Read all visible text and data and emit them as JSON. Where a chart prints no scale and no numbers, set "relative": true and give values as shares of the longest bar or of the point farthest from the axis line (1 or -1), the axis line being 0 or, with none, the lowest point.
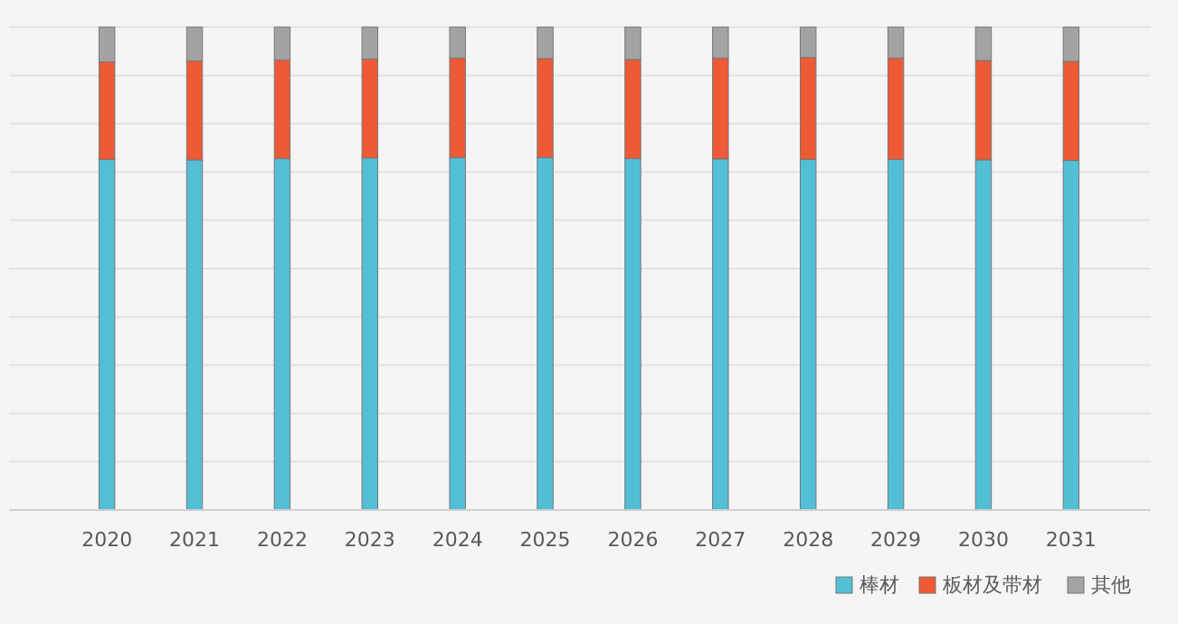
{
  "chart_data": {
    "type": "bar",
    "relative": true,
    "stacked": true,
    "grid": true,
    "legend": "bottom right",
    "categories": [
      "2020",
      "2021",
      "2022",
      "2023",
      "2024",
      "2025",
      "2026",
      "2027",
      "2028",
      "2029",
      "2030",
      "2031"
    ],
    "series": [
      {
        "name": "棒材",
        "color": "#52bfd6",
        "values": [
          0.726,
          0.725,
          0.728,
          0.729,
          0.73,
          0.73,
          0.728,
          0.727,
          0.726,
          0.726,
          0.725,
          0.724
        ]
      },
      {
        "name": "板材及带材",
        "color": "#ee5a35",
        "values": [
          0.202,
          0.205,
          0.204,
          0.205,
          0.206,
          0.205,
          0.205,
          0.209,
          0.211,
          0.21,
          0.206,
          0.205
        ]
      },
      {
        "name": "其他",
        "color": "#a3a3a3",
        "values": [
          0.072,
          0.07,
          0.068,
          0.066,
          0.064,
          0.065,
          0.067,
          0.064,
          0.063,
          0.064,
          0.069,
          0.071
        ]
      }
    ]
  }
}
